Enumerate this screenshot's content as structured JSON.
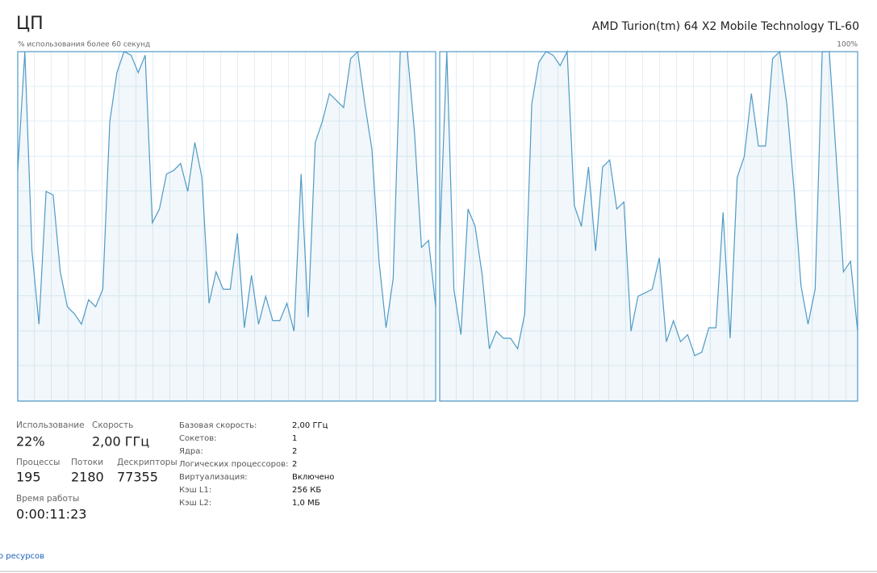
{
  "header": {
    "title": "ЦП",
    "processor": "AMD Turion(tm) 64 X2 Mobile Technology TL-60",
    "caption": "% использования более 60 секунд"
  },
  "chart_data": [
    {
      "type": "line",
      "color": "#4f9ac5",
      "ylim": [
        0,
        100
      ],
      "series": [
        {
          "values": [
            66,
            100,
            43,
            22,
            60,
            59,
            37,
            27,
            25,
            22,
            29,
            27,
            32,
            80,
            94,
            100,
            99,
            94,
            99,
            51,
            55,
            65,
            66,
            68,
            60,
            74,
            64,
            28,
            37,
            32,
            32,
            48,
            21,
            36,
            22,
            30,
            23,
            23,
            28,
            20,
            65,
            24,
            74,
            80,
            88,
            86,
            84,
            98,
            100,
            85,
            72,
            40,
            21,
            35,
            100,
            100,
            77,
            44,
            46,
            27
          ]
        }
      ]
    },
    {
      "type": "line",
      "color": "#4f9ac5",
      "ylim": [
        0,
        100
      ],
      "yticks": [
        {
          "value": 100,
          "label": "100%"
        }
      ],
      "series": [
        {
          "values": [
            45,
            100,
            32,
            19,
            55,
            50,
            36,
            15,
            20,
            18,
            18,
            15,
            25,
            85,
            97,
            100,
            99,
            96,
            100,
            56,
            50,
            67,
            43,
            67,
            69,
            55,
            57,
            20,
            30,
            31,
            32,
            41,
            17,
            23,
            17,
            19,
            13,
            14,
            21,
            21,
            54,
            18,
            64,
            70,
            88,
            73,
            73,
            98,
            100,
            85,
            61,
            33,
            22,
            32,
            100,
            100,
            69,
            37,
            40,
            20
          ]
        }
      ]
    }
  ],
  "stats": [
    {
      "label": "Использование",
      "value": "22%"
    },
    {
      "label": "Скорость",
      "value": "2,00 ГГц"
    },
    {
      "label": "Процессы",
      "value": "195"
    },
    {
      "label": "Потоки",
      "value": "2180"
    },
    {
      "label": "Дескрипторы",
      "value": "77355"
    },
    {
      "label": "Время работы",
      "value": "0:00:11:23"
    }
  ],
  "details": [
    [
      "Базовая скорость:",
      "2,00 ГГц"
    ],
    [
      "Сокетов:",
      "1"
    ],
    [
      "Ядра:",
      "2"
    ],
    [
      "Логических процессоров:",
      "2"
    ],
    [
      "Виртуализация:",
      "Включено"
    ],
    [
      "Кэш L1:",
      "256 КБ"
    ],
    [
      "Кэш L2:",
      "1,0 МБ"
    ]
  ],
  "footer": {
    "link": "о ресурсов"
  }
}
